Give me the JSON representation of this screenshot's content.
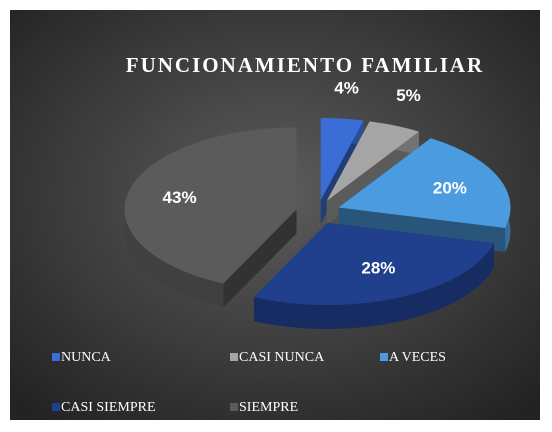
{
  "chart_data": {
    "type": "pie3d",
    "title": "FUNCIONAMIENTO FAMILIAR",
    "categories": [
      "NUNCA",
      "CASI NUNCA",
      "A VECES",
      "CASI SIEMPRE",
      "SIEMPRE"
    ],
    "values": [
      4,
      5,
      20,
      28,
      43
    ],
    "value_labels": [
      "4%",
      "5%",
      "20%",
      "28%",
      "43%"
    ],
    "colors": [
      "#3a6ed6",
      "#a5a5a5",
      "#4b9be0",
      "#203f8c",
      "#5b5b5b"
    ],
    "legend": "bottom"
  }
}
